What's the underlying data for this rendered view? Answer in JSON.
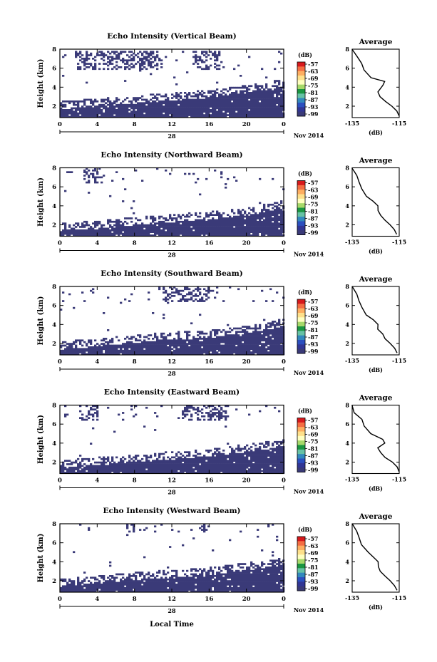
{
  "figure": {
    "date_label": "Nov 2014",
    "day_label": "28",
    "xlabel": "Local Time",
    "colorbar_unit": "(dB)",
    "colorbar_ticks": [
      "-57",
      "-63",
      "-69",
      "-75",
      "-81",
      "-87",
      "-93",
      "-99"
    ],
    "colorbar_colors": [
      "#d7191c",
      "#f46d43",
      "#fdae61",
      "#fee08b",
      "#ffffbf",
      "#a6d96a",
      "#1a9641",
      "#66c2a5",
      "#3288bd",
      "#2b4fbf",
      "#313695",
      "#3a3a78"
    ],
    "avg_title": "Average",
    "avg_xlabel": "(dB)",
    "avg_xticks": [
      "-135",
      "-115"
    ],
    "colors": {
      "echo": "#3a3a78",
      "axis": "#000000",
      "background": "#ffffff"
    }
  },
  "chart_data": [
    {
      "type": "heatmap",
      "title": "Echo Intensity (Vertical Beam)",
      "ylabel": "Height (km)",
      "xlim": [
        0,
        24
      ],
      "ylim": [
        0.8,
        8
      ],
      "xticks": [
        "0",
        "4",
        "8",
        "12",
        "16",
        "20",
        "0"
      ],
      "yticks": [
        "2",
        "4",
        "6",
        "8"
      ],
      "echo_top_km": [
        [
          0,
          2.1
        ],
        [
          4,
          2.4
        ],
        [
          8,
          2.7
        ],
        [
          12,
          3.0
        ],
        [
          16,
          3.3
        ],
        [
          20,
          3.8
        ],
        [
          24,
          4.5
        ]
      ],
      "upper_echo_km": [
        6.0,
        8.0
      ],
      "upper_echo_hours": [
        [
          1.5,
          11
        ],
        [
          14,
          17
        ]
      ],
      "avg_profile": {
        "xlim": [
          -135,
          -115
        ],
        "ylim": [
          0.8,
          8
        ],
        "yticks": [
          "2",
          "4",
          "6",
          "8"
        ],
        "x": [
          -115,
          -116,
          -118,
          -121,
          -123,
          -124,
          -122,
          -121,
          -127,
          -130,
          -131,
          -133,
          -135
        ],
        "y": [
          1.0,
          1.5,
          2.0,
          2.5,
          3.0,
          3.5,
          4.2,
          4.6,
          5.0,
          5.8,
          6.5,
          7.2,
          8.0
        ]
      }
    },
    {
      "type": "heatmap",
      "title": "Echo Intensity (Northward Beam)",
      "ylabel": "Height (km)",
      "xlim": [
        0,
        24
      ],
      "ylim": [
        0.8,
        8
      ],
      "xticks": [
        "0",
        "4",
        "8",
        "12",
        "16",
        "20",
        "0"
      ],
      "yticks": [
        "2",
        "4",
        "6",
        "8"
      ],
      "echo_top_km": [
        [
          0,
          1.8
        ],
        [
          4,
          2.0
        ],
        [
          8,
          2.4
        ],
        [
          12,
          2.7
        ],
        [
          16,
          3.0
        ],
        [
          20,
          3.4
        ],
        [
          24,
          4.2
        ]
      ],
      "upper_echo_km": [
        6.5,
        8.0
      ],
      "upper_echo_hours": [
        [
          2.5,
          4.5
        ]
      ],
      "avg_profile": {
        "xlim": [
          -135,
          -115
        ],
        "ylim": [
          0.8,
          8
        ],
        "yticks": [
          "2",
          "4",
          "6",
          "8"
        ],
        "x": [
          -116,
          -117,
          -119,
          -121,
          -123,
          -124,
          -124,
          -126,
          -129,
          -131,
          -132,
          -133,
          -135
        ],
        "y": [
          1.0,
          1.5,
          2.0,
          2.5,
          3.0,
          3.5,
          4.0,
          4.5,
          5.0,
          5.8,
          6.5,
          7.2,
          8.0
        ]
      }
    },
    {
      "type": "heatmap",
      "title": "Echo Intensity (Southward Beam)",
      "ylabel": "Height (km)",
      "xlim": [
        0,
        24
      ],
      "ylim": [
        0.8,
        8
      ],
      "xticks": [
        "0",
        "4",
        "8",
        "12",
        "16",
        "20",
        "0"
      ],
      "yticks": [
        "2",
        "4",
        "6",
        "8"
      ],
      "echo_top_km": [
        [
          0,
          1.8
        ],
        [
          4,
          2.1
        ],
        [
          8,
          2.5
        ],
        [
          12,
          2.8
        ],
        [
          16,
          3.0
        ],
        [
          20,
          3.5
        ],
        [
          24,
          4.2
        ]
      ],
      "upper_echo_km": [
        6.5,
        8.0
      ],
      "upper_echo_hours": [
        [
          11,
          16
        ]
      ],
      "avg_profile": {
        "xlim": [
          -135,
          -115
        ],
        "ylim": [
          0.8,
          8
        ],
        "yticks": [
          "2",
          "4",
          "6",
          "8"
        ],
        "x": [
          -116,
          -117,
          -119,
          -121,
          -122,
          -124,
          -124,
          -126,
          -129,
          -131,
          -132,
          -133,
          -135
        ],
        "y": [
          1.0,
          1.5,
          2.0,
          2.5,
          3.0,
          3.5,
          4.0,
          4.5,
          5.0,
          5.8,
          6.5,
          7.2,
          8.0
        ]
      }
    },
    {
      "type": "heatmap",
      "title": "Echo Intensity (Eastward Beam)",
      "ylabel": "Height (km)",
      "xlim": [
        0,
        24
      ],
      "ylim": [
        0.8,
        8
      ],
      "xticks": [
        "0",
        "4",
        "8",
        "12",
        "16",
        "20",
        "0"
      ],
      "yticks": [
        "2",
        "4",
        "6",
        "8"
      ],
      "echo_top_km": [
        [
          0,
          1.8
        ],
        [
          4,
          2.1
        ],
        [
          8,
          2.4
        ],
        [
          12,
          2.7
        ],
        [
          16,
          3.0
        ],
        [
          20,
          3.5
        ],
        [
          24,
          4.0
        ]
      ],
      "upper_echo_km": [
        6.5,
        8.0
      ],
      "upper_echo_hours": [
        [
          2,
          4
        ],
        [
          13,
          18
        ]
      ],
      "avg_profile": {
        "xlim": [
          -135,
          -115
        ],
        "ylim": [
          0.8,
          8
        ],
        "yticks": [
          "2",
          "4",
          "6",
          "8"
        ],
        "x": [
          -115,
          -116,
          -118,
          -121,
          -123,
          -124,
          -121,
          -122,
          -127,
          -130,
          -131,
          -134,
          -135
        ],
        "y": [
          1.0,
          1.5,
          2.0,
          2.5,
          3.0,
          3.5,
          4.0,
          4.4,
          5.0,
          5.8,
          6.5,
          7.2,
          8.0
        ]
      }
    },
    {
      "type": "heatmap",
      "title": "Echo Intensity (Westward Beam)",
      "ylabel": "Height (km)",
      "xlim": [
        0,
        24
      ],
      "ylim": [
        0.8,
        8
      ],
      "xticks": [
        "0",
        "4",
        "8",
        "12",
        "16",
        "20",
        "0"
      ],
      "yticks": [
        "2",
        "4",
        "6",
        "8"
      ],
      "echo_top_km": [
        [
          0,
          1.8
        ],
        [
          4,
          2.1
        ],
        [
          8,
          2.5
        ],
        [
          12,
          2.8
        ],
        [
          16,
          3.0
        ],
        [
          20,
          3.5
        ],
        [
          24,
          4.1
        ]
      ],
      "upper_echo_km": [
        7.2,
        8.0
      ],
      "upper_echo_hours": [
        [
          7,
          8
        ],
        [
          15,
          16
        ]
      ],
      "avg_profile": {
        "xlim": [
          -135,
          -115
        ],
        "ylim": [
          0.8,
          8
        ],
        "yticks": [
          "2",
          "4",
          "6",
          "8"
        ],
        "x": [
          -116,
          -117,
          -119,
          -121,
          -123,
          -124,
          -124,
          -126,
          -128,
          -131,
          -132,
          -133,
          -135
        ],
        "y": [
          1.0,
          1.5,
          2.0,
          2.5,
          3.0,
          3.5,
          4.0,
          4.5,
          5.0,
          5.8,
          6.5,
          7.2,
          8.0
        ]
      }
    }
  ]
}
